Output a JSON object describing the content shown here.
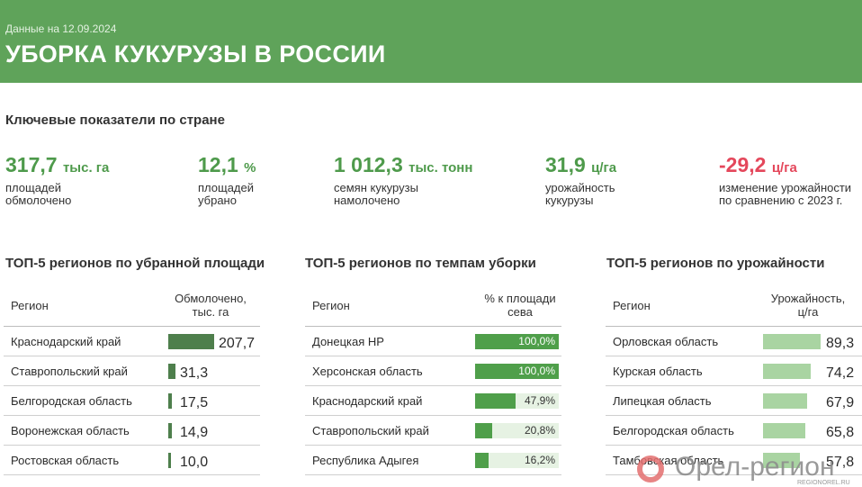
{
  "header": {
    "date": "Данные на 12.09.2024",
    "title": "УБОРКА КУКУРУЗЫ В РОССИИ"
  },
  "kpi_section": {
    "title": "Ключевые показатели по стране",
    "items": [
      {
        "value": "317,7",
        "unit": "тыс. га",
        "desc1": "площадей",
        "desc2": "обмолочено"
      },
      {
        "value": "12,1",
        "unit": "%",
        "desc1": "площадей",
        "desc2": "убрано"
      },
      {
        "value": "1 012,3",
        "unit": "тыс. тонн",
        "desc1": "семян кукурузы",
        "desc2": "намолочено"
      },
      {
        "value": "31,9",
        "unit": "ц/га",
        "desc1": "урожайность",
        "desc2": "кукурузы"
      },
      {
        "value": "-29,2",
        "unit": "ц/га",
        "desc1": "изменение урожайности",
        "desc2": "по сравнению с 2023 г."
      }
    ]
  },
  "colors": {
    "header": "#5fa35a",
    "accent": "#4e9a4b",
    "negative": "#e4475b",
    "bar_dark": "#4e7f4c",
    "bar_mid": "#4f9f4a",
    "bar_light": "#a9d4a2",
    "bar_track": "#e6f2e3"
  },
  "tables": [
    {
      "title": "ТОП-5 регионов по убранной площади",
      "col_region": "Регион",
      "col_value_1": "Обмолочено,",
      "col_value_2": "тыс. га",
      "max": 207.7,
      "rows": [
        {
          "region": "Краснодарский край",
          "value": 207.7,
          "label": "207,7"
        },
        {
          "region": "Ставропольский край",
          "value": 31.3,
          "label": "31,3"
        },
        {
          "region": "Белгородская область",
          "value": 17.5,
          "label": "17,5"
        },
        {
          "region": "Воронежская область",
          "value": 14.9,
          "label": "14,9"
        },
        {
          "region": "Ростовская область",
          "value": 10.0,
          "label": "10,0"
        }
      ]
    },
    {
      "title": "ТОП-5 регионов по темпам уборки",
      "col_region": "Регион",
      "col_value_1": "% к площади",
      "col_value_2": "сева",
      "max": 100,
      "rows": [
        {
          "region": "Донецкая НР",
          "value": 100.0,
          "label": "100,0%"
        },
        {
          "region": "Херсонская область",
          "value": 100.0,
          "label": "100,0%"
        },
        {
          "region": "Краснодарский край",
          "value": 47.9,
          "label": "47,9%"
        },
        {
          "region": "Ставропольский край",
          "value": 20.8,
          "label": "20,8%"
        },
        {
          "region": "Республика Адыгея",
          "value": 16.2,
          "label": "16,2%"
        }
      ]
    },
    {
      "title": "ТОП-5 регионов по урожайности",
      "col_region": "Регион",
      "col_value_1": "Урожайность,",
      "col_value_2": "ц/га",
      "max": 89.3,
      "rows": [
        {
          "region": "Орловская область",
          "value": 89.3,
          "label": "89,3"
        },
        {
          "region": "Курская область",
          "value": 74.2,
          "label": "74,2"
        },
        {
          "region": "Липецкая область",
          "value": 67.9,
          "label": "67,9"
        },
        {
          "region": "Белгородская область",
          "value": 65.8,
          "label": "65,8"
        },
        {
          "region": "Тамбовская область",
          "value": 57.8,
          "label": "57,8"
        }
      ]
    }
  ],
  "logo": {
    "text": "Орел-регион",
    "sub": "REGIONOREL.RU"
  }
}
